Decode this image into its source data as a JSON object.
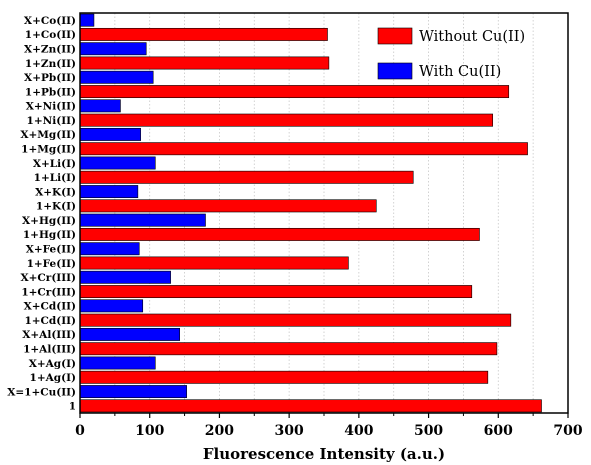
{
  "chart_data": {
    "type": "bar",
    "orientation": "horizontal",
    "xlabel": "Fluorescence Intensity (a.u.)",
    "xlim": [
      0,
      700
    ],
    "xticks": [
      "0",
      "100",
      "200",
      "300",
      "400",
      "500",
      "600",
      "700"
    ],
    "grid": "vertical-dotted",
    "legend_position": "top-right",
    "colors": {
      "without": "#ff0000",
      "with": "#0000ff"
    },
    "legend": [
      {
        "label": "Without Cu(II)",
        "color": "#ff0000"
      },
      {
        "label": "With Cu(II)",
        "color": "#0000ff"
      }
    ],
    "categories": [
      "X+Co(II)",
      "1+Co(II)",
      "X+Zn(II)",
      "1+Zn(II)",
      "X+Pb(II)",
      "1+Pb(II)",
      "X+Ni(II)",
      "1+Ni(II)",
      "X+Mg(II)",
      "1+Mg(II)",
      "X+Li(I)",
      "1+Li(I)",
      "X+K(I)",
      "1+K(I)",
      "X+Hg(II)",
      "1+Hg(II)",
      "X+Fe(II)",
      "1+Fe(II)",
      "X+Cr(III)",
      "1+Cr(III)",
      "X+Cd(II)",
      "1+Cd(II)",
      "X+Al(III)",
      "1+Al(III)",
      "X+Ag(I)",
      "1+Ag(I)",
      "X=1+Cu(II)",
      "1"
    ],
    "values": [
      20,
      355,
      95,
      357,
      105,
      615,
      58,
      592,
      87,
      642,
      108,
      478,
      83,
      425,
      180,
      573,
      85,
      385,
      130,
      562,
      90,
      618,
      143,
      598,
      108,
      585,
      153,
      662
    ],
    "series_index": [
      1,
      0,
      1,
      0,
      1,
      0,
      1,
      0,
      1,
      0,
      1,
      0,
      1,
      0,
      1,
      0,
      1,
      0,
      1,
      0,
      1,
      0,
      1,
      0,
      1,
      0,
      1,
      0
    ]
  }
}
